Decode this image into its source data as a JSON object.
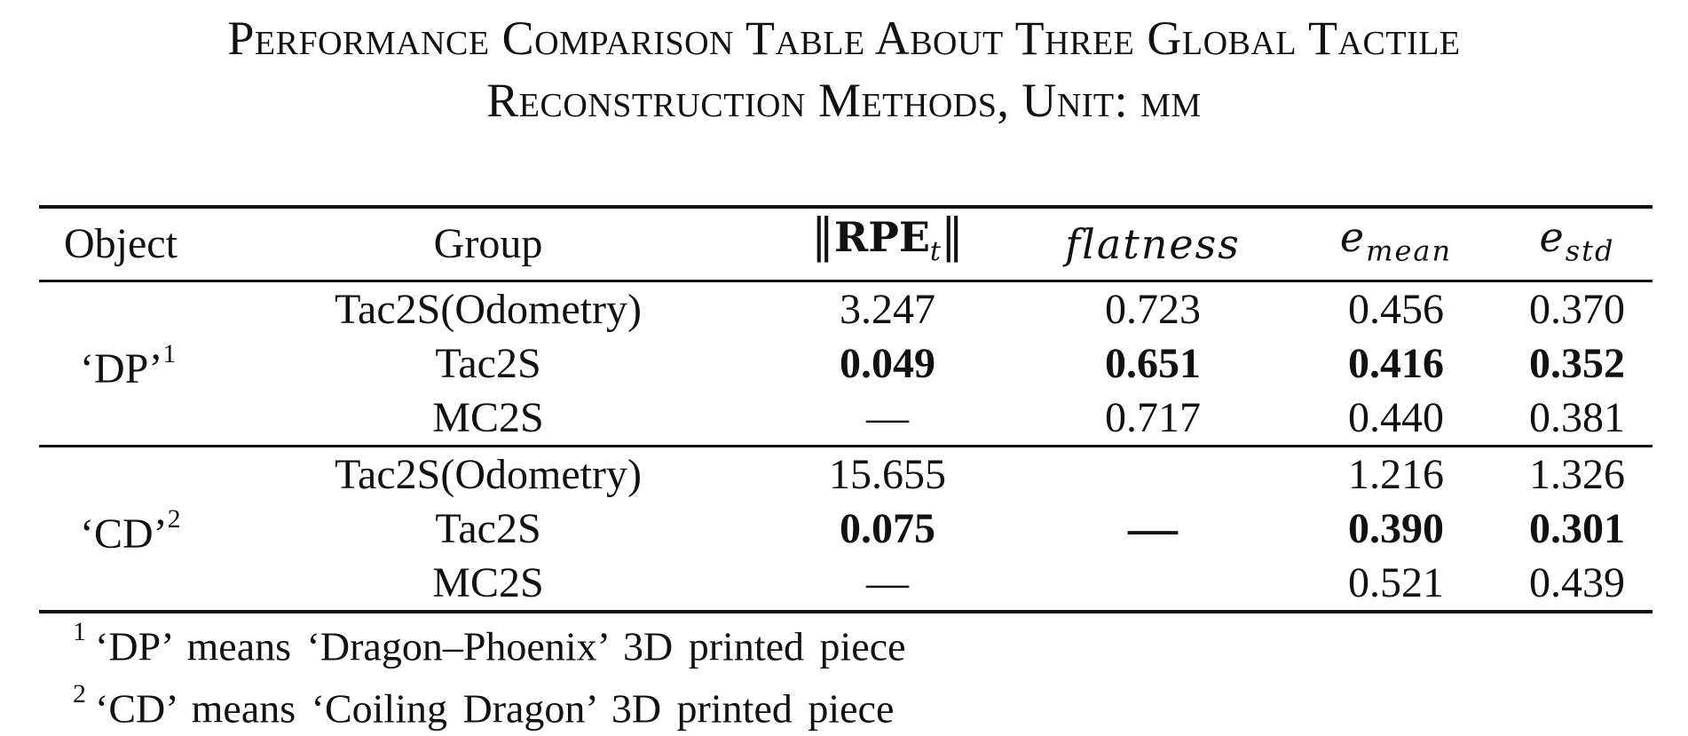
{
  "caption": {
    "line1": "Performance Comparison Table About Three Global Tactile",
    "line2": "Reconstruction Methods, Unit: mm"
  },
  "table": {
    "headers": {
      "object": "Object",
      "group": "Group",
      "rpe_main": "RPE",
      "rpe_sub": "t",
      "rpe_bars": "‖",
      "flatness": "flatness",
      "e_mean_base": "e",
      "e_mean_sub": "mean",
      "e_std_base": "e",
      "e_std_sub": "std"
    },
    "groups": [
      {
        "object": "‘DP’",
        "footnote_mark": "1",
        "rows": [
          {
            "group": "Tac2S(Odometry)",
            "rpe": "3.247",
            "flatness": "0.723",
            "e_mean": "0.456",
            "e_std": "0.370"
          },
          {
            "group": "Tac2S",
            "rpe": "0.049",
            "flatness": "0.651",
            "e_mean": "0.416",
            "e_std": "0.352"
          },
          {
            "group": "MC2S",
            "rpe": "—",
            "flatness": "0.717",
            "e_mean": "0.440",
            "e_std": "0.381"
          }
        ]
      },
      {
        "object": "‘CD’",
        "footnote_mark": "2",
        "flatness_merged": "—",
        "rows": [
          {
            "group": "Tac2S(Odometry)",
            "rpe": "15.655",
            "e_mean": "1.216",
            "e_std": "1.326"
          },
          {
            "group": "Tac2S",
            "rpe": "0.075",
            "e_mean": "0.390",
            "e_std": "0.301"
          },
          {
            "group": "MC2S",
            "rpe": "—",
            "e_mean": "0.521",
            "e_std": "0.439"
          }
        ]
      }
    ]
  },
  "footnotes": [
    {
      "mark": "1",
      "text": "‘DP’ means ‘Dragon–Phoenix’ 3D printed piece"
    },
    {
      "mark": "2",
      "text": "‘CD’ means ‘Coiling Dragon’ 3D printed piece"
    }
  ]
}
